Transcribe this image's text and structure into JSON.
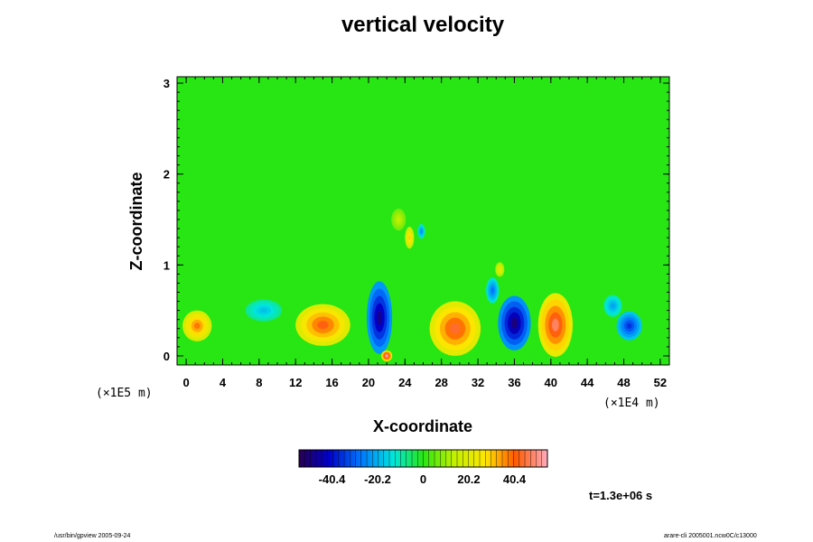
{
  "chart_data": {
    "type": "heatmap",
    "title": "vertical velocity",
    "xlabel": "X-coordinate",
    "ylabel": "Z-coordinate",
    "x_unit": "(×1E4 m)",
    "y_unit": "(×1E5 m)",
    "xlim": [
      -1,
      53
    ],
    "ylim": [
      -0.1,
      3.07
    ],
    "x_ticks": [
      "0",
      "4",
      "8",
      "12",
      "16",
      "20",
      "24",
      "28",
      "32",
      "36",
      "40",
      "44",
      "48",
      "52"
    ],
    "y_ticks": [
      "0",
      "1",
      "2",
      "3"
    ],
    "colorbar": {
      "range": [
        -55,
        55
      ],
      "tick_labels": [
        "-40.4",
        "-20.2",
        "0",
        "20.2",
        "40.4"
      ],
      "tick_values": [
        -40.4,
        -20.2,
        0,
        20.2,
        40.4
      ]
    },
    "background_value": 0,
    "features": [
      {
        "x": 1.2,
        "z": 0.33,
        "rx": 1.6,
        "rz": 0.17,
        "value": 38
      },
      {
        "x": 8.5,
        "z": 0.5,
        "rx": 2.0,
        "rz": 0.12,
        "value": -18
      },
      {
        "x": 15.0,
        "z": 0.34,
        "rx": 3.0,
        "rz": 0.23,
        "value": 42
      },
      {
        "x": 21.2,
        "z": 0.42,
        "rx": 1.4,
        "rz": 0.4,
        "value": -48
      },
      {
        "x": 29.5,
        "z": 0.3,
        "rx": 2.8,
        "rz": 0.3,
        "value": 44
      },
      {
        "x": 36.0,
        "z": 0.36,
        "rx": 1.8,
        "rz": 0.3,
        "value": -50
      },
      {
        "x": 40.5,
        "z": 0.34,
        "rx": 1.9,
        "rz": 0.35,
        "value": 48
      },
      {
        "x": 48.6,
        "z": 0.33,
        "rx": 1.4,
        "rz": 0.16,
        "value": -36
      },
      {
        "x": 46.8,
        "z": 0.55,
        "rx": 1.0,
        "rz": 0.12,
        "value": -22
      },
      {
        "x": 24.5,
        "z": 1.3,
        "rx": 0.5,
        "rz": 0.12,
        "value": 30
      },
      {
        "x": 25.8,
        "z": 1.37,
        "rx": 0.4,
        "rz": 0.08,
        "value": -25
      },
      {
        "x": 33.6,
        "z": 0.72,
        "rx": 0.7,
        "rz": 0.14,
        "value": -28
      },
      {
        "x": 34.4,
        "z": 0.95,
        "rx": 0.5,
        "rz": 0.08,
        "value": 22
      },
      {
        "x": 22.0,
        "z": 0.0,
        "rx": 0.6,
        "rz": 0.06,
        "value": 55
      },
      {
        "x": 23.3,
        "z": 1.5,
        "rx": 0.8,
        "rz": 0.12,
        "value": 14
      }
    ]
  },
  "time_label": "t=1.3e+06 s",
  "footer_left": "/usr/bin/gpview 2005-09-24",
  "footer_right": "arare-cli 2005001.ncw0C/c13000"
}
